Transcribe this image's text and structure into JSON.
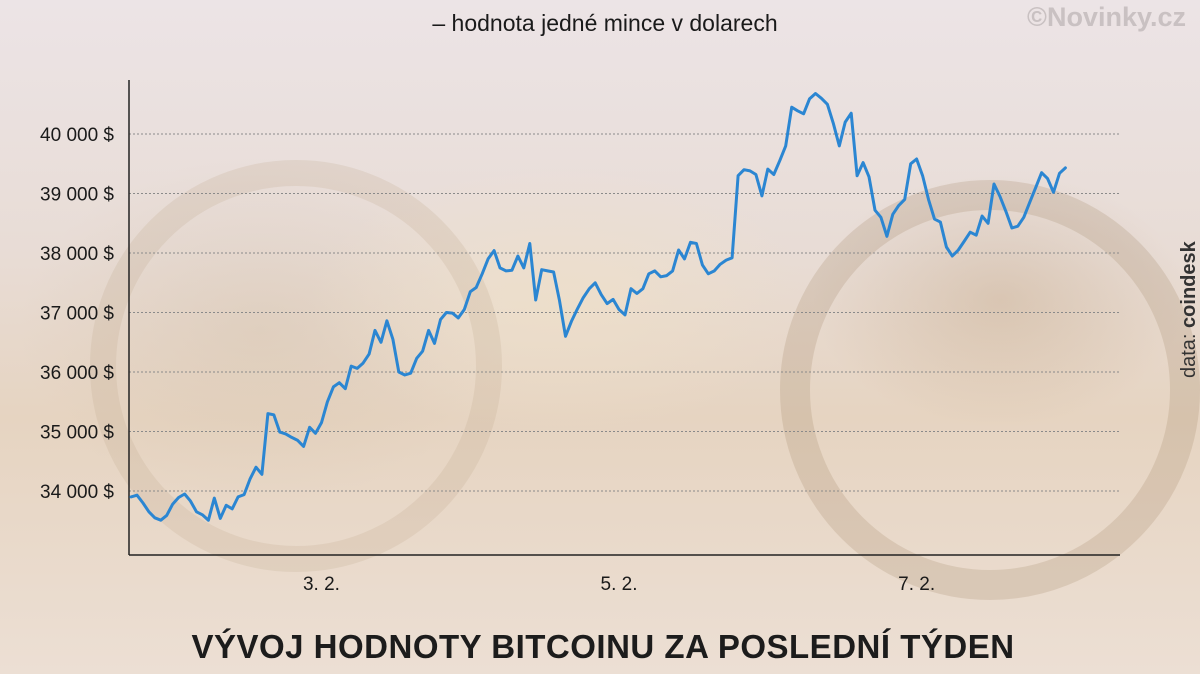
{
  "watermark": "©Novinky.cz",
  "source": {
    "prefix": "data: ",
    "name": "coindesk"
  },
  "colors": {
    "line": "#2b86d2",
    "axis": "#222222",
    "grid": "#8a8a8a"
  },
  "chart_data": {
    "type": "line",
    "title": "VÝVOJ HODNOTY BITCOINU ZA POSLEDNÍ TÝDEN",
    "subtitle": "– hodnota jedné mince v dolarech",
    "xlabel": "",
    "ylabel": "",
    "grid": true,
    "xlim": [
      0,
      166
    ],
    "ylim": [
      33000,
      40900
    ],
    "yticks": [
      {
        "value": 34000,
        "label": "34 000 $"
      },
      {
        "value": 35000,
        "label": "35 000 $"
      },
      {
        "value": 36000,
        "label": "36 000 $"
      },
      {
        "value": 37000,
        "label": "37 000 $"
      },
      {
        "value": 38000,
        "label": "38 000 $"
      },
      {
        "value": 39000,
        "label": "39 000 $"
      },
      {
        "value": 40000,
        "label": "40 000 $"
      }
    ],
    "xticks": [
      {
        "value": 32,
        "label": "3. 2."
      },
      {
        "value": 82,
        "label": "5. 2."
      },
      {
        "value": 132,
        "label": "7. 2."
      }
    ],
    "series": [
      {
        "values": [
          [
            0,
            33900
          ],
          [
            1,
            33930
          ],
          [
            2,
            33800
          ],
          [
            3,
            33650
          ],
          [
            4,
            33550
          ],
          [
            5,
            33510
          ],
          [
            6,
            33590
          ],
          [
            7,
            33780
          ],
          [
            8,
            33890
          ],
          [
            9,
            33950
          ],
          [
            10,
            33830
          ],
          [
            11,
            33650
          ],
          [
            12,
            33600
          ],
          [
            13,
            33510
          ],
          [
            14,
            33880
          ],
          [
            15,
            33540
          ],
          [
            16,
            33760
          ],
          [
            17,
            33700
          ],
          [
            18,
            33900
          ],
          [
            19,
            33940
          ],
          [
            20,
            34200
          ],
          [
            21,
            34400
          ],
          [
            22,
            34280
          ],
          [
            23,
            35300
          ],
          [
            24,
            35280
          ],
          [
            25,
            34990
          ],
          [
            26,
            34960
          ],
          [
            27,
            34900
          ],
          [
            28,
            34850
          ],
          [
            29,
            34750
          ],
          [
            30,
            35070
          ],
          [
            31,
            34970
          ],
          [
            32,
            35150
          ],
          [
            33,
            35500
          ],
          [
            34,
            35750
          ],
          [
            35,
            35820
          ],
          [
            36,
            35720
          ],
          [
            37,
            36100
          ],
          [
            38,
            36060
          ],
          [
            39,
            36150
          ],
          [
            40,
            36300
          ],
          [
            41,
            36700
          ],
          [
            42,
            36500
          ],
          [
            43,
            36860
          ],
          [
            44,
            36550
          ],
          [
            45,
            36000
          ],
          [
            46,
            35950
          ],
          [
            47,
            35980
          ],
          [
            48,
            36230
          ],
          [
            49,
            36350
          ],
          [
            50,
            36700
          ],
          [
            51,
            36480
          ],
          [
            52,
            36880
          ],
          [
            53,
            37000
          ],
          [
            54,
            36990
          ],
          [
            55,
            36910
          ],
          [
            56,
            37050
          ],
          [
            57,
            37350
          ],
          [
            58,
            37420
          ],
          [
            59,
            37650
          ],
          [
            60,
            37900
          ],
          [
            61,
            38040
          ],
          [
            62,
            37750
          ],
          [
            63,
            37700
          ],
          [
            64,
            37710
          ],
          [
            65,
            37950
          ],
          [
            66,
            37750
          ],
          [
            67,
            38160
          ],
          [
            68,
            37210
          ],
          [
            69,
            37720
          ],
          [
            70,
            37700
          ],
          [
            71,
            37680
          ],
          [
            72,
            37200
          ],
          [
            73,
            36600
          ],
          [
            74,
            36850
          ],
          [
            75,
            37060
          ],
          [
            76,
            37250
          ],
          [
            77,
            37400
          ],
          [
            78,
            37500
          ],
          [
            79,
            37300
          ],
          [
            80,
            37150
          ],
          [
            81,
            37220
          ],
          [
            82,
            37050
          ],
          [
            83,
            36960
          ],
          [
            84,
            37400
          ],
          [
            85,
            37320
          ],
          [
            86,
            37400
          ],
          [
            87,
            37650
          ],
          [
            88,
            37700
          ],
          [
            89,
            37600
          ],
          [
            90,
            37620
          ],
          [
            91,
            37700
          ],
          [
            92,
            38050
          ],
          [
            93,
            37900
          ],
          [
            94,
            38180
          ],
          [
            95,
            38160
          ],
          [
            96,
            37800
          ],
          [
            97,
            37650
          ],
          [
            98,
            37700
          ],
          [
            99,
            37810
          ],
          [
            100,
            37880
          ],
          [
            101,
            37920
          ],
          [
            102,
            39300
          ],
          [
            103,
            39400
          ],
          [
            104,
            39380
          ],
          [
            105,
            39320
          ],
          [
            106,
            38960
          ],
          [
            107,
            39410
          ],
          [
            108,
            39320
          ],
          [
            109,
            39550
          ],
          [
            110,
            39800
          ],
          [
            111,
            40450
          ],
          [
            112,
            40390
          ],
          [
            113,
            40340
          ],
          [
            114,
            40590
          ],
          [
            115,
            40680
          ],
          [
            116,
            40600
          ],
          [
            117,
            40500
          ],
          [
            118,
            40180
          ],
          [
            119,
            39800
          ],
          [
            120,
            40200
          ],
          [
            121,
            40350
          ],
          [
            122,
            39300
          ],
          [
            123,
            39520
          ],
          [
            124,
            39280
          ],
          [
            125,
            38720
          ],
          [
            126,
            38600
          ],
          [
            127,
            38280
          ],
          [
            128,
            38650
          ],
          [
            129,
            38800
          ],
          [
            130,
            38900
          ],
          [
            131,
            39500
          ],
          [
            132,
            39580
          ],
          [
            133,
            39300
          ],
          [
            134,
            38900
          ],
          [
            135,
            38570
          ],
          [
            136,
            38520
          ],
          [
            137,
            38100
          ],
          [
            138,
            37950
          ],
          [
            139,
            38050
          ],
          [
            140,
            38200
          ],
          [
            141,
            38350
          ],
          [
            142,
            38300
          ],
          [
            143,
            38620
          ],
          [
            144,
            38500
          ],
          [
            145,
            39160
          ],
          [
            146,
            38950
          ],
          [
            147,
            38700
          ],
          [
            148,
            38420
          ],
          [
            149,
            38450
          ],
          [
            150,
            38600
          ],
          [
            151,
            38850
          ],
          [
            152,
            39100
          ],
          [
            153,
            39350
          ],
          [
            154,
            39250
          ],
          [
            155,
            39020
          ],
          [
            156,
            39340
          ],
          [
            157,
            39430
          ]
        ]
      }
    ]
  }
}
